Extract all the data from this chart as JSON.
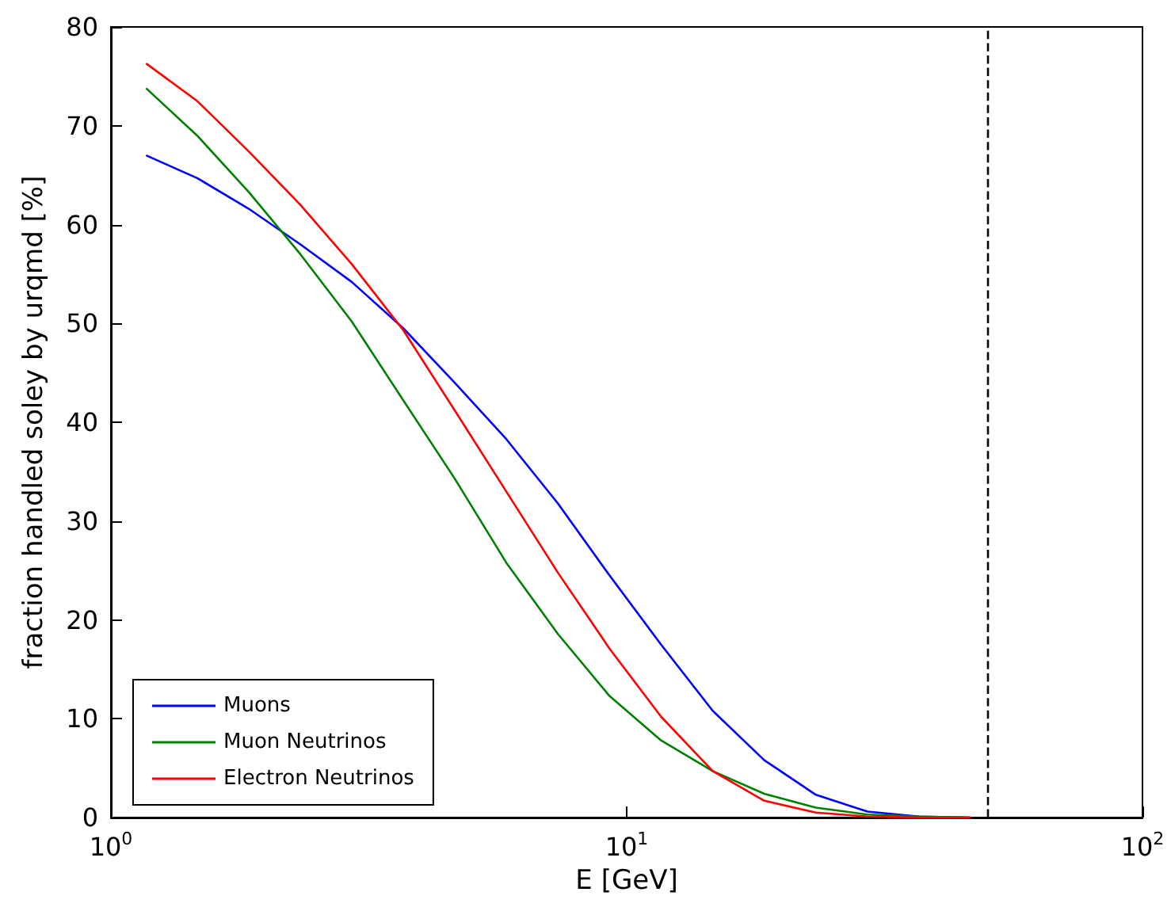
{
  "chart_data": {
    "type": "line",
    "xlabel": "E [GeV]",
    "ylabel": "fraction handled soley by urqmd [%]",
    "log": "x",
    "x": [
      1.17,
      1.47,
      1.85,
      2.33,
      2.93,
      3.69,
      4.64,
      5.84,
      7.35,
      9.26,
      11.66,
      14.68,
      18.48,
      23.27,
      29.3,
      36.9,
      46.4
    ],
    "series": [
      {
        "name": "Muons",
        "color": "#0000ff",
        "values": [
          67,
          64.7,
          61.6,
          58,
          54.2,
          49.5,
          44,
          38.3,
          31.8,
          24.5,
          17.5,
          10.8,
          5.8,
          2.3,
          0.6,
          0.1,
          0
        ]
      },
      {
        "name": "Muon Neutrinos",
        "color": "#008000",
        "values": [
          73.8,
          69,
          63.3,
          57,
          50.2,
          42.2,
          34.3,
          25.8,
          18.6,
          12.3,
          7.8,
          4.7,
          2.4,
          1,
          0.3,
          0.1,
          0
        ]
      },
      {
        "name": "Electron Neutrinos",
        "color": "#ff0000",
        "values": [
          76.3,
          72.5,
          67.4,
          62,
          56,
          49.3,
          41.2,
          33,
          24.8,
          17.1,
          10.2,
          4.7,
          1.7,
          0.5,
          0.1,
          0,
          0
        ]
      }
    ],
    "xlim": [
      1,
      100
    ],
    "xticks": [
      {
        "value": 1,
        "label": "10$^{0}$"
      },
      {
        "value": 10,
        "label": "10$^{1}$"
      },
      {
        "value": 100,
        "label": "10$^{2}$"
      }
    ],
    "ylim": [
      0,
      80
    ],
    "yticks": [
      0,
      10,
      20,
      30,
      40,
      50,
      60,
      70,
      80
    ],
    "ref_lines": [
      {
        "axis": "x",
        "value": 50,
        "color": "#000000",
        "line_style": "dashed"
      }
    ],
    "grid": false,
    "legend": "bottom left",
    "marker": "none",
    "line_style": "solid"
  }
}
